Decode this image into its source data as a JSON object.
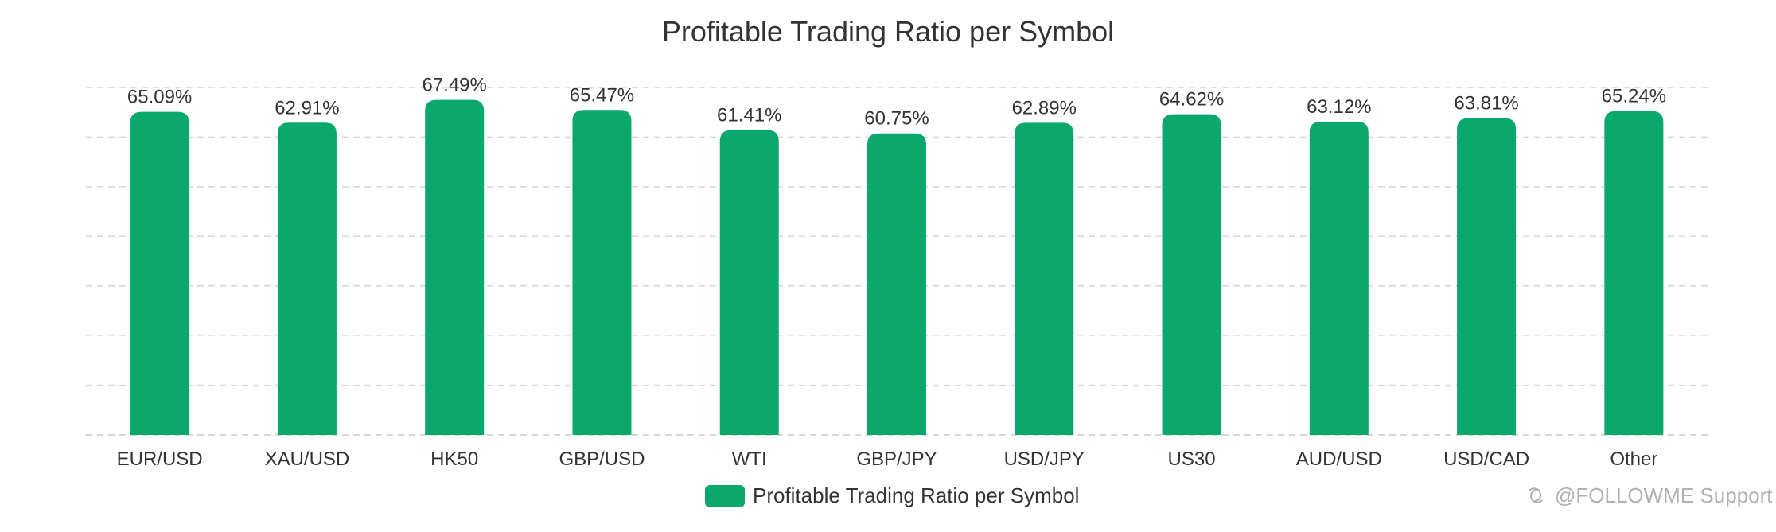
{
  "chart_data": {
    "type": "bar",
    "title": "Profitable Trading Ratio per Symbol",
    "categories": [
      "EUR/USD",
      "XAU/USD",
      "HK50",
      "GBP/USD",
      "WTI",
      "GBP/JPY",
      "USD/JPY",
      "US30",
      "AUD/USD",
      "USD/CAD",
      "Other"
    ],
    "series": [
      {
        "name": "Profitable Trading Ratio per Symbol",
        "values": [
          65.09,
          62.91,
          67.49,
          65.47,
          61.41,
          60.75,
          62.89,
          64.62,
          63.12,
          63.81,
          65.24
        ],
        "labels": [
          "65.09%",
          "62.91%",
          "67.49%",
          "65.47%",
          "61.41%",
          "60.75%",
          "62.89%",
          "64.62%",
          "63.12%",
          "63.81%",
          "65.24%"
        ],
        "color": "#0aa86c"
      }
    ],
    "ylim": [
      0,
      70
    ],
    "grid": true,
    "legend": "bottom-center"
  },
  "watermark": "@FOLLOWME Support",
  "colors": {
    "bar": "#0aa86c",
    "grid": "#d6d6d6",
    "axis": "#cccccc",
    "text": "#333333",
    "watermark": "#b0b0b0"
  }
}
